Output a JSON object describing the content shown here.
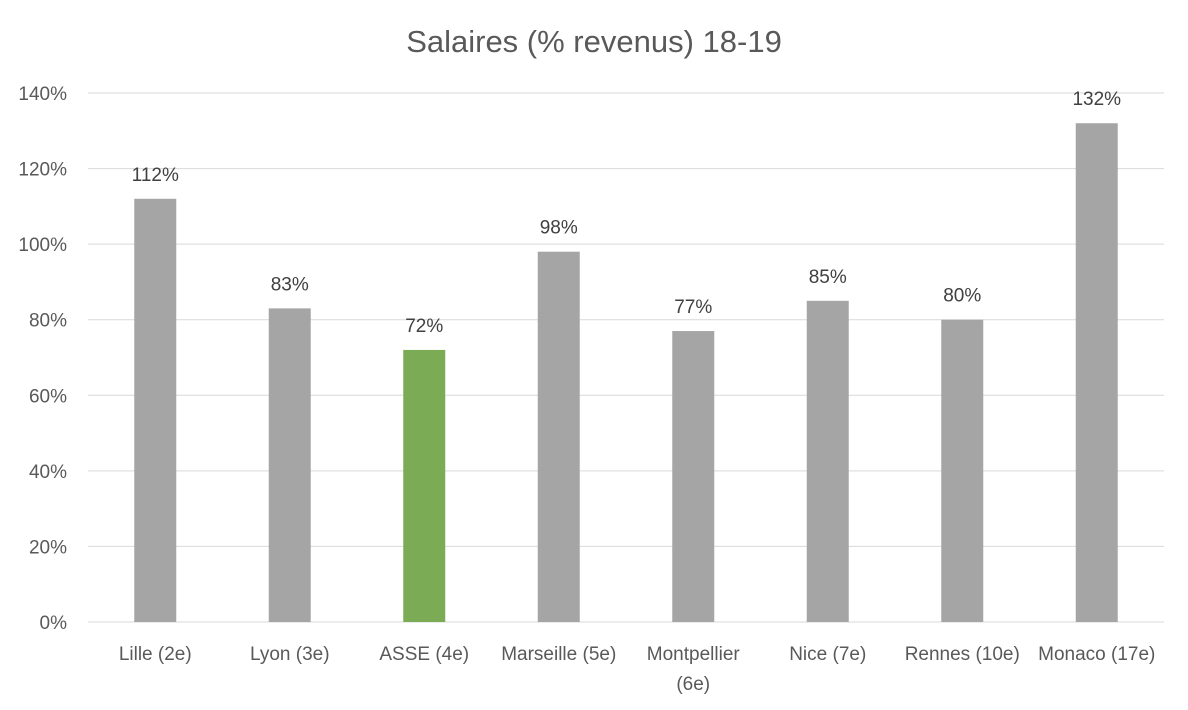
{
  "chart_data": {
    "type": "bar",
    "title": "Salaires (% revenus) 18-19",
    "xlabel": "",
    "ylabel": "",
    "ylim": [
      0,
      140
    ],
    "yticks": [
      0,
      20,
      40,
      60,
      80,
      100,
      120,
      140
    ],
    "ytick_labels": [
      "0%",
      "20%",
      "40%",
      "60%",
      "80%",
      "100%",
      "120%",
      "140%"
    ],
    "grid": true,
    "legend": "none",
    "categories": [
      [
        "Lille (2e)"
      ],
      [
        "Lyon (3e)"
      ],
      [
        "ASSE (4e)"
      ],
      [
        "Marseille (5e)"
      ],
      [
        "Montpellier",
        "(6e)"
      ],
      [
        "Nice (7e)"
      ],
      [
        "Rennes (10e)"
      ],
      [
        "Monaco (17e)"
      ]
    ],
    "values": [
      112,
      83,
      72,
      98,
      77,
      85,
      80,
      132
    ],
    "data_labels": [
      "112%",
      "83%",
      "72%",
      "98%",
      "77%",
      "85%",
      "80%",
      "132%"
    ],
    "bar_colors": [
      "#a5a5a5",
      "#a5a5a5",
      "#7cab55",
      "#a5a5a5",
      "#a5a5a5",
      "#a5a5a5",
      "#a5a5a5",
      "#a5a5a5"
    ]
  }
}
